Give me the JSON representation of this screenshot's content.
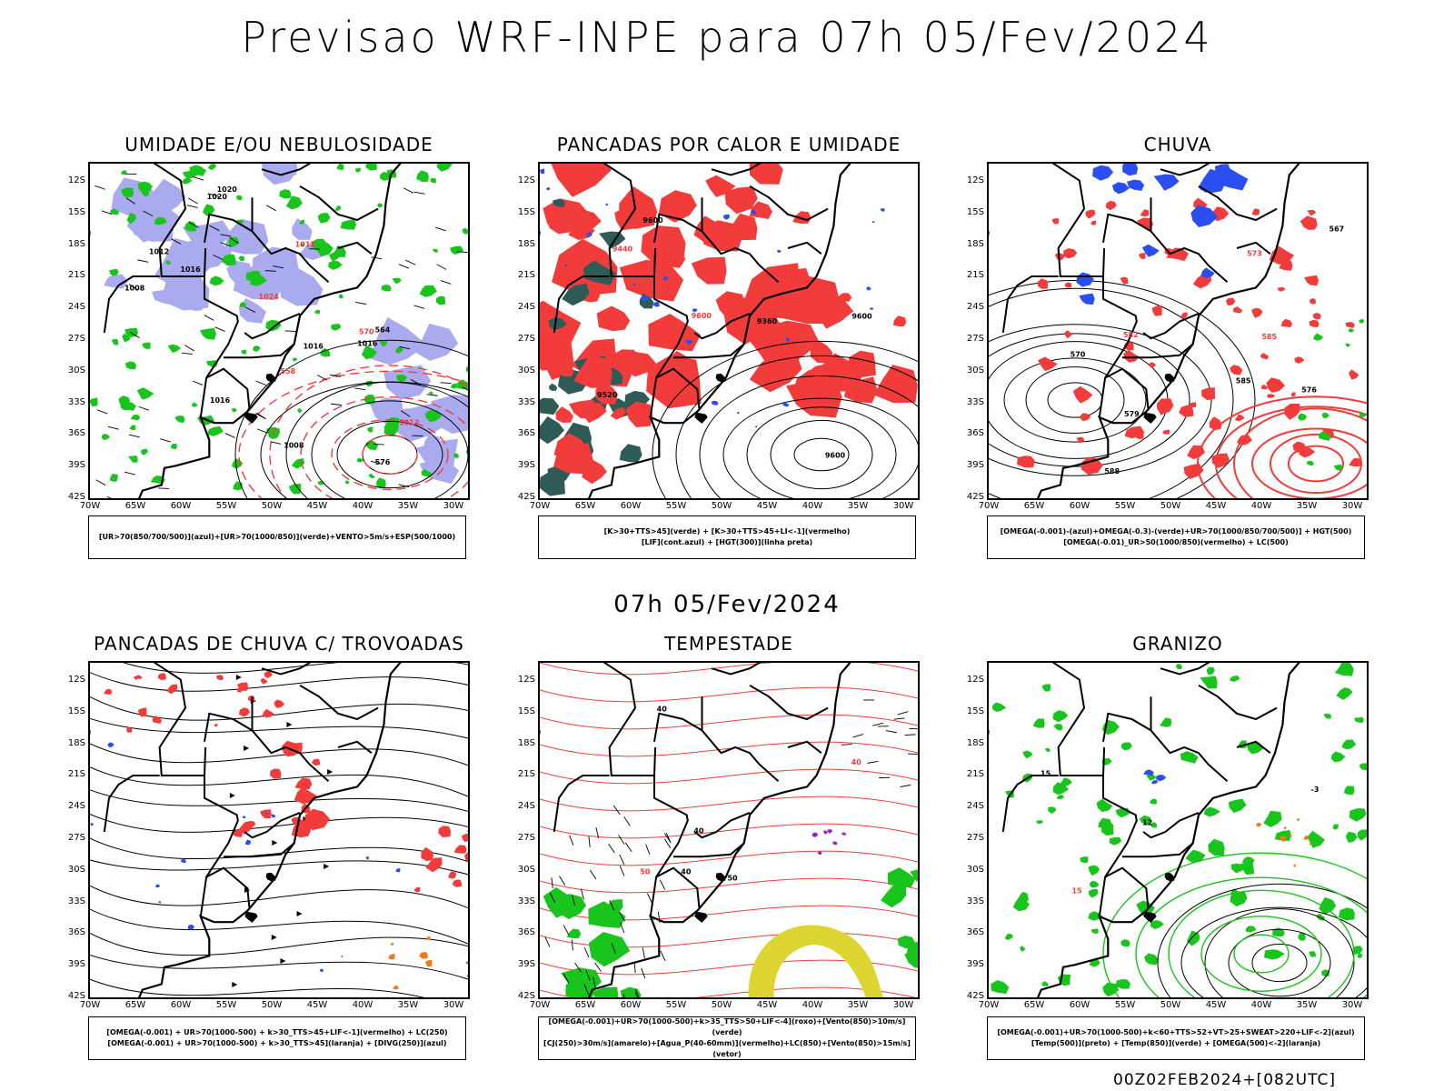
{
  "title": "Previsao WRF-INPE  para 07h 05/Fev/2024",
  "subtitle": "07h 05/Fev/2024",
  "footer": "00Z02FEB2024+[082UTC]",
  "axes": {
    "lat_labels": [
      "12S",
      "15S",
      "18S",
      "21S",
      "24S",
      "27S",
      "30S",
      "33S",
      "36S",
      "39S",
      "42S"
    ],
    "lon_labels": [
      "70W",
      "65W",
      "60W",
      "55W",
      "50W",
      "45W",
      "40W",
      "35W",
      "30W"
    ]
  },
  "colors": {
    "red": "#f23b3b",
    "green": "#19c41c",
    "blue": "#2a4ef0",
    "lavender": "#aaaaee",
    "darkteal": "#2f5b57",
    "yellow": "#dcd532",
    "orange": "#f07a18",
    "purple": "#9a22c9"
  },
  "panels": [
    {
      "title": "UMIDADE E/OU NEBULOSIDADE",
      "legend": [
        "[UR>70(850/700/500)](azul)+[UR>70(1000/850)](verde)+VENTO>5m/s+ESP(500/1000)"
      ],
      "contour_labels": [
        "1016",
        "1012",
        "1024",
        "1020",
        "1016",
        "1012",
        "1008",
        "1016",
        "1012",
        "1016",
        "1020",
        "570",
        "576",
        "564",
        "558",
        "1008"
      ]
    },
    {
      "title": "PANCADAS POR CALOR E UMIDADE",
      "legend": [
        "[K>30+TTS>45](verde) + [K>30+TTS>45+LI<-1](vermelho)",
        "[LIF](cont.azul) + [HGT(300)](linha preta)"
      ],
      "contour_labels": [
        "9600",
        "9600",
        "9600",
        "9600",
        "9520",
        "9440",
        "9360"
      ]
    },
    {
      "title": "CHUVA",
      "legend": [
        "[OMEGA(-0.001)-(azul)+OMEGA(-0.3)-(verde)+UR>70(1000/850/700/500)] + HGT(500)",
        "[OMEGA(-0.01)_UR>50(1000/850)(vermelho) + LC(500)"
      ],
      "contour_labels": [
        "588",
        "585",
        "582",
        "579",
        "576",
        "573",
        "570",
        "567",
        "585"
      ]
    },
    {
      "title": "PANCADAS DE CHUVA C/ TROVOADAS",
      "legend": [
        "[OMEGA(-0.001) + UR>70(1000-500) + k>30_TTS>45+LIF<-1](vermelho) + LC(250)",
        "[OMEGA(-0.001) + UR>70(1000-500) + k>30_TTS>45](laranja) + [DIVG(250)](azul)"
      ],
      "contour_labels": []
    },
    {
      "title": "TEMPESTADE",
      "legend": [
        "[OMEGA(-0.001)+UR>70(1000-500)+k>35_TTS>50+LIF<-4](roxo)+[Vento(850)>10m/s](verde)",
        "[CJ(250)>30m/s](amarelo)+[Agua_P(40-60mm)](vermelho)+LC(850)+[Vento(850)>15m/s](vetor)"
      ],
      "contour_labels": [
        "40",
        "40",
        "50",
        "40",
        "50",
        "40"
      ]
    },
    {
      "title": "GRANIZO",
      "legend": [
        "[OMEGA(-0.001)+UR>70(1000-500)+k<60+TTS>52+VT>25+SWEAT>220+LIF<-2](azul)",
        "[Temp(500)](preto) + [Temp(850)](verde) + [OMEGA(500)<-2](laranja)"
      ],
      "contour_labels": [
        "12",
        "15",
        "15",
        "-3"
      ]
    }
  ]
}
